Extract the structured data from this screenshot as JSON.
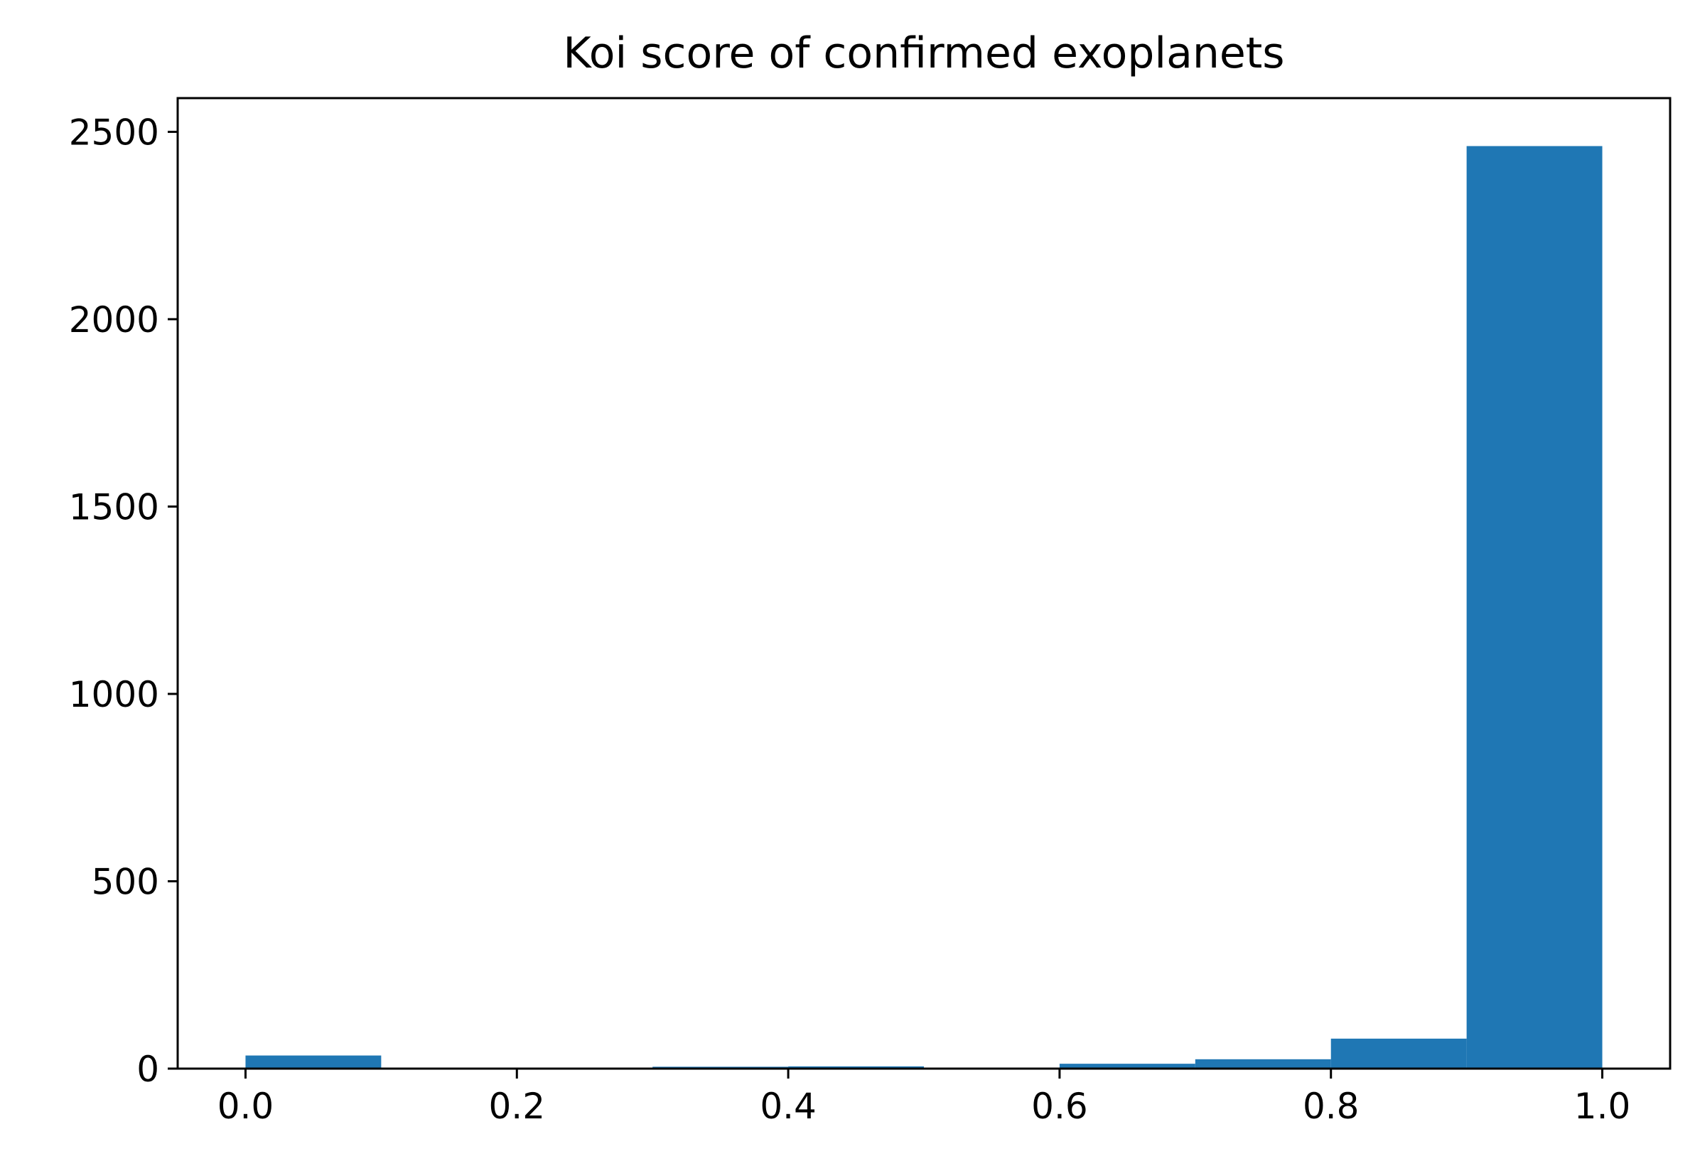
{
  "chart_data": {
    "type": "bar",
    "title": "Koi score of confirmed exoplanets",
    "xlabel": "",
    "ylabel": "",
    "bins": [
      {
        "start": 0.0,
        "end": 0.1,
        "count": 35
      },
      {
        "start": 0.1,
        "end": 0.2,
        "count": 0
      },
      {
        "start": 0.2,
        "end": 0.3,
        "count": 0
      },
      {
        "start": 0.3,
        "end": 0.4,
        "count": 5
      },
      {
        "start": 0.4,
        "end": 0.5,
        "count": 6
      },
      {
        "start": 0.5,
        "end": 0.6,
        "count": 0
      },
      {
        "start": 0.6,
        "end": 0.7,
        "count": 13
      },
      {
        "start": 0.7,
        "end": 0.8,
        "count": 25
      },
      {
        "start": 0.8,
        "end": 0.9,
        "count": 80
      },
      {
        "start": 0.9,
        "end": 1.0,
        "count": 2462
      }
    ],
    "xlim": [
      -0.05,
      1.05
    ],
    "ylim": [
      0,
      2590
    ],
    "xticks": [
      {
        "value": 0.0,
        "label": "0.0"
      },
      {
        "value": 0.2,
        "label": "0.2"
      },
      {
        "value": 0.4,
        "label": "0.4"
      },
      {
        "value": 0.6,
        "label": "0.6"
      },
      {
        "value": 0.8,
        "label": "0.8"
      },
      {
        "value": 1.0,
        "label": "1.0"
      }
    ],
    "yticks": [
      {
        "value": 0,
        "label": "0"
      },
      {
        "value": 500,
        "label": "500"
      },
      {
        "value": 1000,
        "label": "1000"
      },
      {
        "value": 1500,
        "label": "1500"
      },
      {
        "value": 2000,
        "label": "2000"
      },
      {
        "value": 2500,
        "label": "2500"
      }
    ],
    "grid": false,
    "legend": "none",
    "colors": {
      "bar": "#1f77b4",
      "axes": "#000000",
      "background": "#ffffff"
    }
  }
}
